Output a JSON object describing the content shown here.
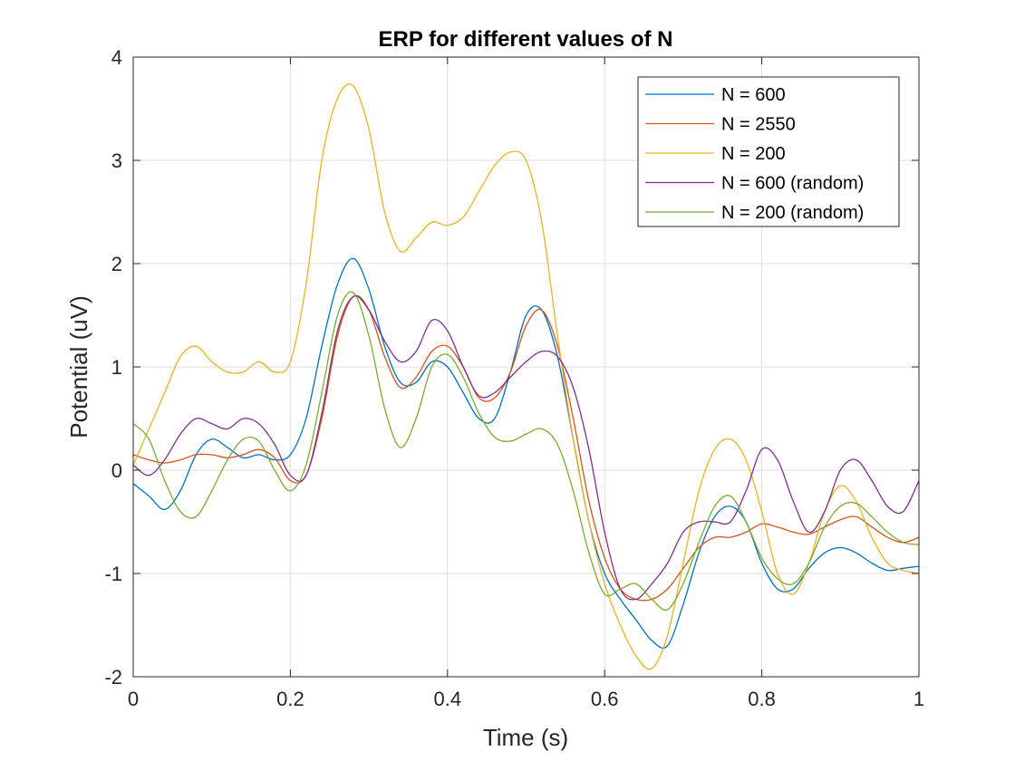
{
  "chart_data": {
    "type": "line",
    "title": "ERP for different values of N",
    "xlabel": "Time (s)",
    "ylabel": "Potential (uV)",
    "xlim": [
      0,
      1
    ],
    "ylim": [
      -2,
      4
    ],
    "xticks": [
      0,
      0.2,
      0.4,
      0.6,
      0.8,
      1
    ],
    "xtick_labels": [
      "0",
      "0.2",
      "0.4",
      "0.6",
      "0.8",
      "1"
    ],
    "yticks": [
      -2,
      -1,
      0,
      1,
      2,
      3,
      4
    ],
    "ytick_labels": [
      "-2",
      "-1",
      "0",
      "1",
      "2",
      "3",
      "4"
    ],
    "grid": true,
    "legend_position": "top-right",
    "x": [
      0,
      0.02,
      0.04,
      0.06,
      0.08,
      0.1,
      0.12,
      0.14,
      0.16,
      0.18,
      0.2,
      0.22,
      0.24,
      0.26,
      0.28,
      0.3,
      0.32,
      0.34,
      0.36,
      0.38,
      0.4,
      0.42,
      0.44,
      0.46,
      0.48,
      0.5,
      0.52,
      0.54,
      0.56,
      0.58,
      0.6,
      0.62,
      0.64,
      0.66,
      0.68,
      0.7,
      0.72,
      0.74,
      0.76,
      0.78,
      0.8,
      0.82,
      0.84,
      0.86,
      0.88,
      0.9,
      0.92,
      0.94,
      0.96,
      0.98,
      1.0
    ],
    "series": [
      {
        "name": "N = 600",
        "color": "#0072BD",
        "values": [
          -0.13,
          -0.25,
          -0.38,
          -0.2,
          0.15,
          0.3,
          0.22,
          0.12,
          0.15,
          0.1,
          0.15,
          0.5,
          1.2,
          1.8,
          2.05,
          1.75,
          1.2,
          0.85,
          0.85,
          1.05,
          1.0,
          0.75,
          0.5,
          0.5,
          0.95,
          1.5,
          1.55,
          1.1,
          0.3,
          -0.5,
          -1.0,
          -1.25,
          -1.45,
          -1.65,
          -1.7,
          -1.3,
          -0.8,
          -0.45,
          -0.35,
          -0.5,
          -0.9,
          -1.15,
          -1.15,
          -0.95,
          -0.8,
          -0.75,
          -0.8,
          -0.9,
          -0.97,
          -0.95,
          -0.93
        ]
      },
      {
        "name": "N = 2550",
        "color": "#D95319",
        "values": [
          0.15,
          0.1,
          0.07,
          0.1,
          0.15,
          0.15,
          0.12,
          0.15,
          0.2,
          0.12,
          -0.1,
          -0.05,
          0.5,
          1.3,
          1.68,
          1.55,
          1.1,
          0.8,
          0.9,
          1.15,
          1.2,
          1.0,
          0.7,
          0.7,
          0.95,
          1.4,
          1.55,
          1.2,
          0.5,
          -0.3,
          -0.85,
          -1.15,
          -1.25,
          -1.25,
          -1.15,
          -0.95,
          -0.75,
          -0.65,
          -0.65,
          -0.6,
          -0.52,
          -0.55,
          -0.6,
          -0.62,
          -0.55,
          -0.48,
          -0.45,
          -0.55,
          -0.65,
          -0.7,
          -0.65
        ]
      },
      {
        "name": "N = 200",
        "color": "#EDB120",
        "values": [
          0.05,
          0.4,
          0.75,
          1.1,
          1.2,
          1.05,
          0.95,
          0.95,
          1.05,
          0.95,
          1.05,
          1.8,
          3.0,
          3.6,
          3.72,
          3.3,
          2.5,
          2.12,
          2.25,
          2.4,
          2.37,
          2.45,
          2.7,
          2.95,
          3.08,
          3.0,
          2.4,
          1.3,
          0.3,
          -0.5,
          -1.1,
          -1.5,
          -1.8,
          -1.92,
          -1.6,
          -0.9,
          -0.2,
          0.2,
          0.3,
          0.1,
          -0.4,
          -1.0,
          -1.2,
          -0.9,
          -0.4,
          -0.15,
          -0.3,
          -0.65,
          -0.9,
          -0.97,
          -1.0
        ]
      },
      {
        "name": "N = 600 (random)",
        "color": "#7E2F8E",
        "values": [
          0.05,
          -0.05,
          0.1,
          0.35,
          0.5,
          0.45,
          0.4,
          0.5,
          0.45,
          0.25,
          -0.05,
          -0.05,
          0.55,
          1.35,
          1.68,
          1.55,
          1.25,
          1.05,
          1.15,
          1.45,
          1.35,
          1.0,
          0.72,
          0.75,
          0.9,
          1.05,
          1.15,
          1.1,
          0.8,
          0.2,
          -0.6,
          -1.15,
          -1.25,
          -1.1,
          -0.9,
          -0.6,
          -0.5,
          -0.5,
          -0.5,
          -0.2,
          0.2,
          0.1,
          -0.3,
          -0.6,
          -0.4,
          0.0,
          0.1,
          -0.1,
          -0.35,
          -0.4,
          -0.1
        ]
      },
      {
        "name": "N = 200 (random)",
        "color": "#77AC30",
        "values": [
          0.45,
          0.3,
          -0.1,
          -0.4,
          -0.45,
          -0.2,
          0.1,
          0.3,
          0.28,
          0.0,
          -0.2,
          0.05,
          0.75,
          1.5,
          1.72,
          1.3,
          0.6,
          0.22,
          0.5,
          1.0,
          1.12,
          0.9,
          0.55,
          0.32,
          0.28,
          0.35,
          0.4,
          0.25,
          -0.2,
          -0.8,
          -1.2,
          -1.15,
          -1.1,
          -1.25,
          -1.35,
          -1.1,
          -0.7,
          -0.35,
          -0.25,
          -0.5,
          -0.85,
          -1.05,
          -1.1,
          -0.9,
          -0.55,
          -0.35,
          -0.32,
          -0.45,
          -0.6,
          -0.7,
          -0.72
        ]
      }
    ]
  }
}
